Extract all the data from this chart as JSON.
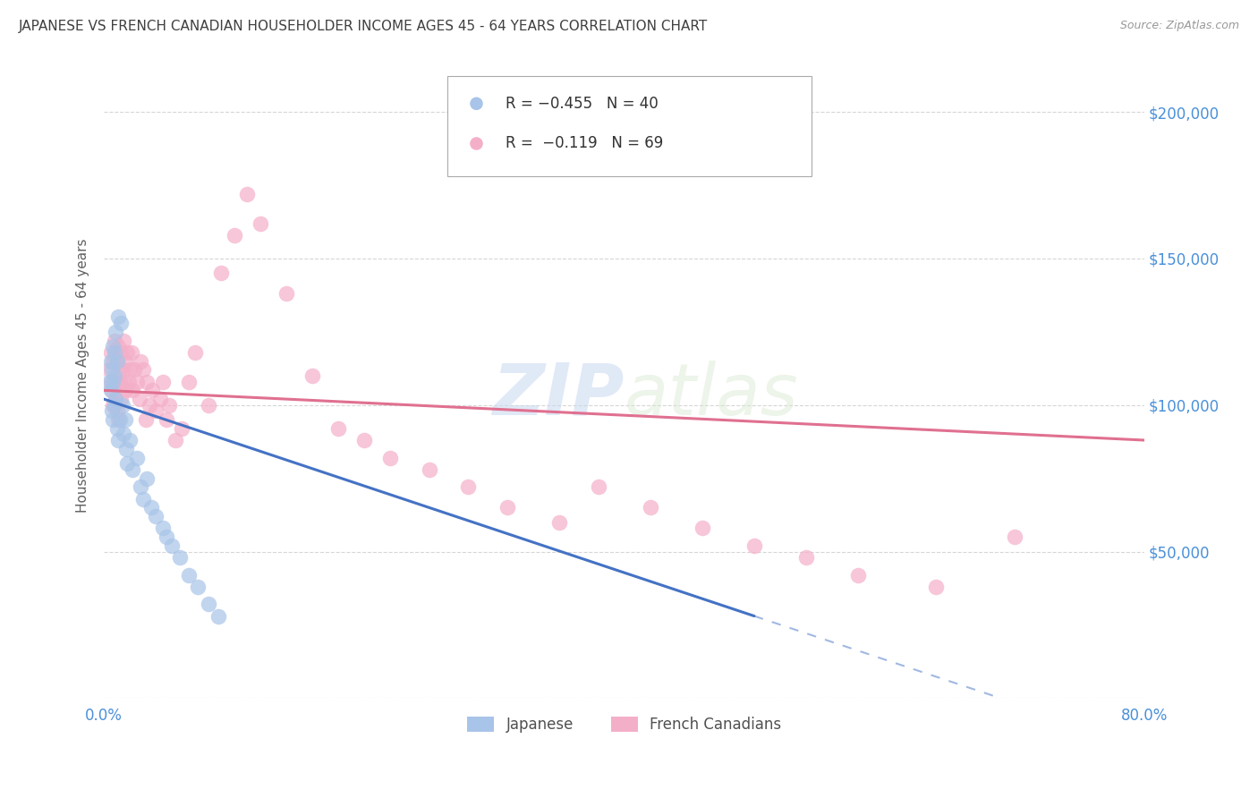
{
  "title": "JAPANESE VS FRENCH CANADIAN HOUSEHOLDER INCOME AGES 45 - 64 YEARS CORRELATION CHART",
  "source": "Source: ZipAtlas.com",
  "ylabel": "Householder Income Ages 45 - 64 years",
  "xlim": [
    0,
    0.8
  ],
  "ylim": [
    0,
    220000
  ],
  "xticks": [
    0.0,
    0.1,
    0.2,
    0.3,
    0.4,
    0.5,
    0.6,
    0.7,
    0.8
  ],
  "xticklabels": [
    "0.0%",
    "",
    "",
    "",
    "",
    "",
    "",
    "",
    "80.0%"
  ],
  "yticks": [
    0,
    50000,
    100000,
    150000,
    200000
  ],
  "yticklabels": [
    "",
    "$50,000",
    "$100,000",
    "$150,000",
    "$200,000"
  ],
  "legend_label_1": "Japanese",
  "legend_label_2": "French Canadians",
  "watermark": "ZIPatlas",
  "japanese_color": "#a8c4e8",
  "french_color": "#f4afc8",
  "japanese_line_color": "#4472c4",
  "french_line_color": "#e07090",
  "background_color": "#ffffff",
  "grid_color": "#cccccc",
  "title_color": "#404040",
  "axis_label_color": "#606060",
  "ytick_color": "#4a90d9",
  "xtick_color": "#4a90d9",
  "japanese_x": [
    0.004,
    0.005,
    0.005,
    0.006,
    0.006,
    0.007,
    0.007,
    0.007,
    0.008,
    0.008,
    0.008,
    0.009,
    0.009,
    0.01,
    0.01,
    0.011,
    0.011,
    0.012,
    0.013,
    0.014,
    0.015,
    0.016,
    0.017,
    0.018,
    0.02,
    0.022,
    0.025,
    0.028,
    0.03,
    0.033,
    0.036,
    0.04,
    0.045,
    0.048,
    0.052,
    0.058,
    0.065,
    0.072,
    0.08,
    0.088
  ],
  "japanese_y": [
    108000,
    115000,
    105000,
    112000,
    98000,
    120000,
    108000,
    95000,
    118000,
    110000,
    100000,
    125000,
    102000,
    115000,
    92000,
    130000,
    88000,
    95000,
    128000,
    100000,
    90000,
    95000,
    85000,
    80000,
    88000,
    78000,
    82000,
    72000,
    68000,
    75000,
    65000,
    62000,
    58000,
    55000,
    52000,
    48000,
    42000,
    38000,
    32000,
    28000
  ],
  "french_x": [
    0.004,
    0.005,
    0.005,
    0.006,
    0.007,
    0.007,
    0.008,
    0.008,
    0.009,
    0.009,
    0.01,
    0.01,
    0.01,
    0.011,
    0.011,
    0.012,
    0.012,
    0.013,
    0.013,
    0.014,
    0.015,
    0.015,
    0.016,
    0.017,
    0.018,
    0.019,
    0.02,
    0.021,
    0.022,
    0.023,
    0.025,
    0.027,
    0.028,
    0.03,
    0.032,
    0.033,
    0.035,
    0.037,
    0.04,
    0.043,
    0.045,
    0.048,
    0.05,
    0.055,
    0.06,
    0.065,
    0.07,
    0.08,
    0.09,
    0.1,
    0.11,
    0.12,
    0.14,
    0.16,
    0.18,
    0.2,
    0.22,
    0.25,
    0.28,
    0.31,
    0.35,
    0.38,
    0.42,
    0.46,
    0.5,
    0.54,
    0.58,
    0.64,
    0.7
  ],
  "french_y": [
    112000,
    108000,
    118000,
    105000,
    115000,
    100000,
    122000,
    108000,
    102000,
    118000,
    115000,
    108000,
    98000,
    120000,
    95000,
    112000,
    108000,
    118000,
    102000,
    112000,
    122000,
    108000,
    115000,
    105000,
    118000,
    108000,
    112000,
    118000,
    105000,
    112000,
    108000,
    102000,
    115000,
    112000,
    95000,
    108000,
    100000,
    105000,
    98000,
    102000,
    108000,
    95000,
    100000,
    88000,
    92000,
    108000,
    118000,
    100000,
    145000,
    158000,
    172000,
    162000,
    138000,
    110000,
    92000,
    88000,
    82000,
    78000,
    72000,
    65000,
    60000,
    72000,
    65000,
    58000,
    52000,
    48000,
    42000,
    38000,
    55000
  ],
  "j_line_x0": 0.0,
  "j_line_x1": 0.5,
  "j_line_x_dash_end": 0.8,
  "j_line_y0": 102000,
  "j_line_y1": 28000,
  "f_line_x0": 0.0,
  "f_line_x1": 0.8,
  "f_line_y0": 105000,
  "f_line_y1": 88000
}
